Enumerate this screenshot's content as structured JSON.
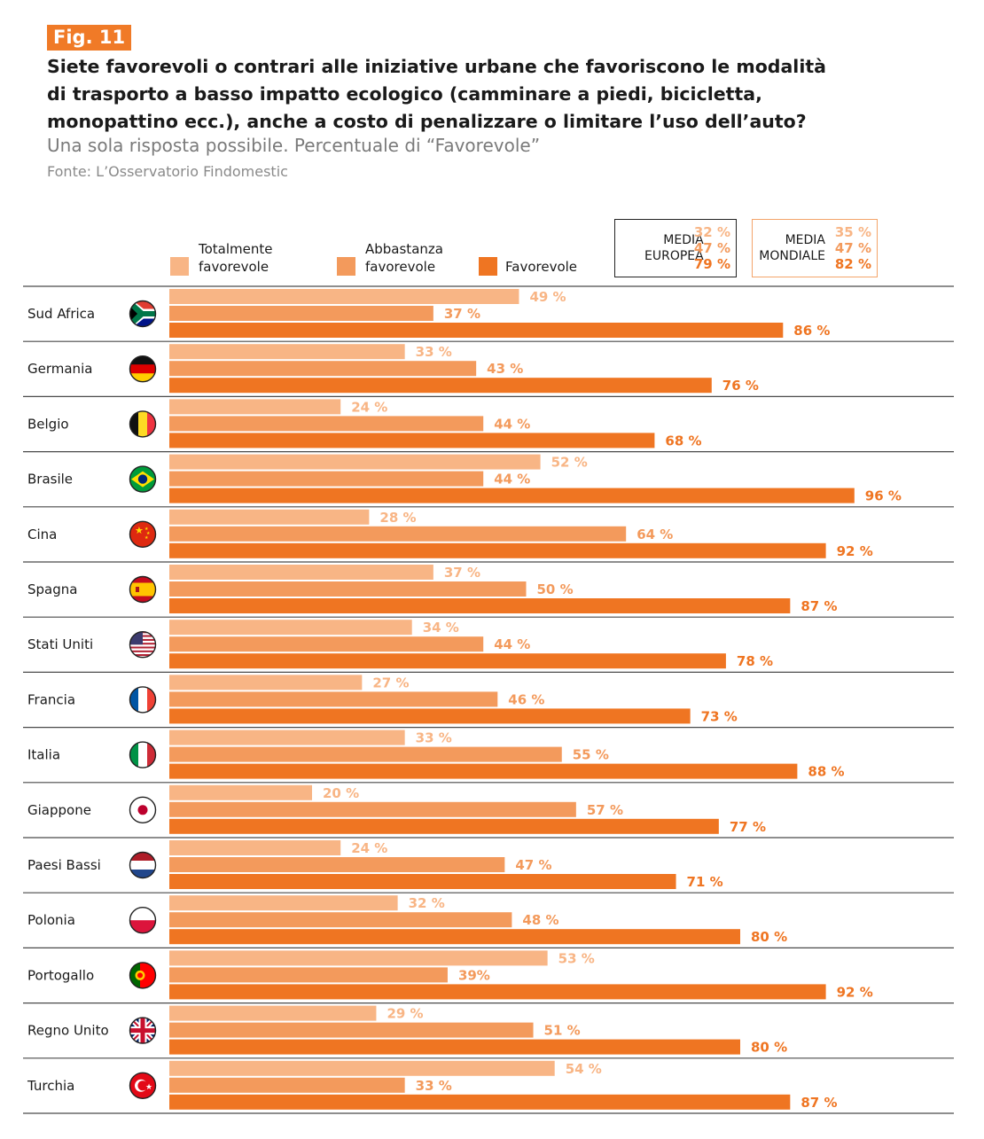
{
  "header": {
    "fig_label": "Fig. 11",
    "question_lines": [
      "Siete favorevoli o contrari alle iniziative urbane che favoriscono le modalità",
      "di trasporto a basso impatto ecologico (camminare a piedi, bicicletta,",
      "monopattino ecc.), anche a costo di penalizzare o limitare l’uso dell’auto?"
    ],
    "subtitle": "Una sola risposta possibile. Percentuale di “Favorevole”",
    "source": "Fonte: L’Osservatorio Findomestic"
  },
  "legend": {
    "items": [
      {
        "label_lines": [
          "Totalmente",
          "favorevole"
        ],
        "color": "#f8b585"
      },
      {
        "label_lines": [
          "Abbastanza",
          "favorevole"
        ],
        "color": "#f39a5c"
      },
      {
        "label_lines": [
          "Favorevole"
        ],
        "color": "#ef7522"
      }
    ]
  },
  "averages": {
    "european": {
      "label_lines": [
        "MEDIA",
        "EUROPEA"
      ],
      "values": [
        "32 %",
        "47 %",
        "79 %"
      ]
    },
    "world": {
      "label_lines": [
        "MEDIA",
        "MONDIALE"
      ],
      "values": [
        "35 %",
        "47 %",
        "82 %"
      ]
    }
  },
  "colors": {
    "series1": "#f8b585",
    "series2": "#f39a5c",
    "series3": "#ef7522"
  },
  "chart_data": {
    "type": "bar",
    "orientation": "horizontal",
    "title": "",
    "categories": [
      "Sud Africa",
      "Germania",
      "Belgio",
      "Brasile",
      "Cina",
      "Spagna",
      "Stati Uniti",
      "Francia",
      "Italia",
      "Giappone",
      "Paesi Bassi",
      "Polonia",
      "Portogallo",
      "Regno Unito",
      "Turchia"
    ],
    "flags": [
      "south-africa-flag-icon",
      "germany-flag-icon",
      "belgium-flag-icon",
      "brazil-flag-icon",
      "china-flag-icon",
      "spain-flag-icon",
      "usa-flag-icon",
      "france-flag-icon",
      "italy-flag-icon",
      "japan-flag-icon",
      "netherlands-flag-icon",
      "poland-flag-icon",
      "portugal-flag-icon",
      "uk-flag-icon",
      "turkey-flag-icon"
    ],
    "series": [
      {
        "name": "Totalmente favorevole",
        "values": [
          49,
          33,
          24,
          52,
          28,
          37,
          34,
          27,
          33,
          20,
          24,
          32,
          53,
          29,
          54
        ],
        "labels": [
          "49 %",
          "33 %",
          "24 %",
          "52 %",
          "28 %",
          "37 %",
          "34 %",
          "27 %",
          "33 %",
          "20 %",
          "24 %",
          "32 %",
          "53 %",
          "29 %",
          "54 %"
        ]
      },
      {
        "name": "Abbastanza favorevole",
        "values": [
          37,
          43,
          44,
          44,
          64,
          50,
          44,
          46,
          55,
          57,
          47,
          48,
          39,
          51,
          33
        ],
        "labels": [
          "37 %",
          "43 %",
          "44 %",
          "44 %",
          "64 %",
          "50 %",
          "44 %",
          "46 %",
          "55 %",
          "57 %",
          "47 %",
          "48 %",
          "39%",
          "51 %",
          "33 %"
        ]
      },
      {
        "name": "Favorevole",
        "values": [
          86,
          76,
          68,
          96,
          92,
          87,
          78,
          73,
          88,
          77,
          71,
          80,
          92,
          80,
          87
        ],
        "labels": [
          "86 %",
          "76 %",
          "68 %",
          "96 %",
          "92 %",
          "87 %",
          "78 %",
          "73 %",
          "88 %",
          "77 %",
          "71 %",
          "80 %",
          "92 %",
          "80 %",
          "87 %"
        ]
      }
    ],
    "xlim": [
      0,
      100
    ],
    "grid": false,
    "legend_position": "top"
  }
}
